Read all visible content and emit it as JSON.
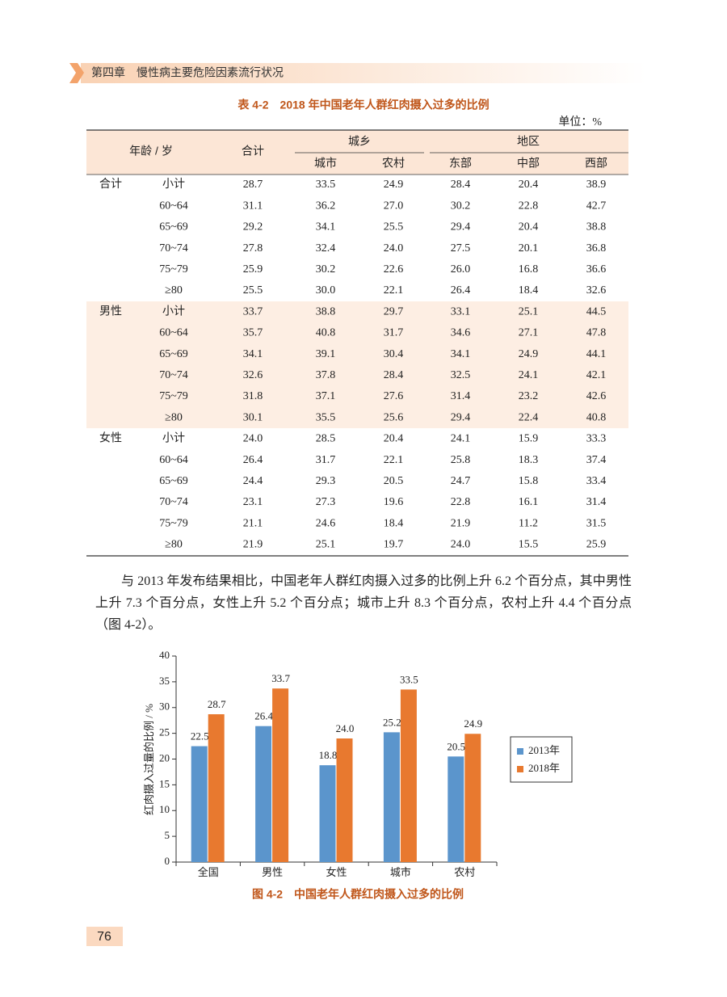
{
  "header": {
    "title": "第四章　慢性病主要危险因素流行状况"
  },
  "table": {
    "title": "表 4-2　2018 年中国老年人群红肉摄入过多的比例",
    "unit": "单位：%",
    "headers": {
      "age": "年龄 / 岁",
      "total": "合计",
      "urban_rural": "城乡",
      "urban": "城市",
      "rural": "农村",
      "region": "地区",
      "east": "东部",
      "central": "中部",
      "west": "西部"
    },
    "groups": [
      {
        "label": "合计",
        "rows": [
          [
            "小计",
            "28.7",
            "33.5",
            "24.9",
            "28.4",
            "20.4",
            "38.9"
          ],
          [
            "60~64",
            "31.1",
            "36.2",
            "27.0",
            "30.2",
            "22.8",
            "42.7"
          ],
          [
            "65~69",
            "29.2",
            "34.1",
            "25.5",
            "29.4",
            "20.4",
            "38.8"
          ],
          [
            "70~74",
            "27.8",
            "32.4",
            "24.0",
            "27.5",
            "20.1",
            "36.8"
          ],
          [
            "75~79",
            "25.9",
            "30.2",
            "22.6",
            "26.0",
            "16.8",
            "36.6"
          ],
          [
            "≥80",
            "25.5",
            "30.0",
            "22.1",
            "26.4",
            "18.4",
            "32.6"
          ]
        ]
      },
      {
        "label": "男性",
        "rows": [
          [
            "小计",
            "33.7",
            "38.8",
            "29.7",
            "33.1",
            "25.1",
            "44.5"
          ],
          [
            "60~64",
            "35.7",
            "40.8",
            "31.7",
            "34.6",
            "27.1",
            "47.8"
          ],
          [
            "65~69",
            "34.1",
            "39.1",
            "30.4",
            "34.1",
            "24.9",
            "44.1"
          ],
          [
            "70~74",
            "32.6",
            "37.8",
            "28.4",
            "32.5",
            "24.1",
            "42.1"
          ],
          [
            "75~79",
            "31.8",
            "37.1",
            "27.6",
            "31.4",
            "23.2",
            "42.6"
          ],
          [
            "≥80",
            "30.1",
            "35.5",
            "25.6",
            "29.4",
            "22.4",
            "40.8"
          ]
        ]
      },
      {
        "label": "女性",
        "rows": [
          [
            "小计",
            "24.0",
            "28.5",
            "20.4",
            "24.1",
            "15.9",
            "33.3"
          ],
          [
            "60~64",
            "26.4",
            "31.7",
            "22.1",
            "25.8",
            "18.3",
            "37.4"
          ],
          [
            "65~69",
            "24.4",
            "29.3",
            "20.5",
            "24.7",
            "15.8",
            "33.4"
          ],
          [
            "70~74",
            "23.1",
            "27.3",
            "19.6",
            "22.8",
            "16.1",
            "31.4"
          ],
          [
            "75~79",
            "21.1",
            "24.6",
            "18.4",
            "21.9",
            "11.2",
            "31.5"
          ],
          [
            "≥80",
            "21.9",
            "25.1",
            "19.7",
            "24.0",
            "15.5",
            "25.9"
          ]
        ]
      }
    ]
  },
  "paragraph": "与 2013 年发布结果相比，中国老年人群红肉摄入过多的比例上升 6.2 个百分点，其中男性上升 7.3 个百分点，女性上升 5.2 个百分点；城市上升 8.3 个百分点，农村上升 4.4 个百分点（图 4-2）。",
  "chart_data": {
    "type": "bar",
    "title": "图 4-2　中国老年人群红肉摄入过多的比例",
    "y_label": "红肉摄入过量的比例 / %",
    "categories": [
      "全国",
      "男性",
      "女性",
      "城市",
      "农村"
    ],
    "series": [
      {
        "name": "2013年",
        "color": "#5b95cc",
        "values": [
          22.5,
          26.4,
          18.8,
          25.2,
          20.5
        ]
      },
      {
        "name": "2018年",
        "color": "#e8792f",
        "values": [
          28.7,
          33.7,
          24.0,
          33.5,
          24.9
        ],
        "value_labels": [
          "28.7",
          "33.7",
          "24.0",
          "33.5",
          "24.9"
        ]
      }
    ],
    "ylim": [
      0,
      40
    ],
    "yticks": [
      0,
      5,
      10,
      15,
      20,
      25,
      30,
      35,
      40
    ],
    "legend": "right"
  },
  "page_number": "76"
}
